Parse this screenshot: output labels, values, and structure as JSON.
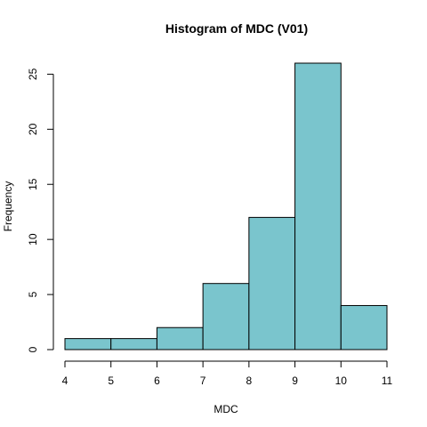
{
  "chart_data": {
    "type": "bar",
    "title": "Histogram of MDC (V01)",
    "xlabel": "MDC",
    "ylabel": "Frequency",
    "bin_edges": [
      4,
      5,
      6,
      7,
      8,
      9,
      10,
      11
    ],
    "values": [
      1,
      1,
      2,
      6,
      12,
      26,
      4
    ],
    "xlim": [
      4,
      11
    ],
    "ylim": [
      0,
      27
    ],
    "x_ticks": [
      4,
      5,
      6,
      7,
      8,
      9,
      10,
      11
    ],
    "y_ticks": [
      0,
      5,
      10,
      15,
      20,
      25
    ],
    "bar_color": "#7ac5cd",
    "grid": false
  }
}
